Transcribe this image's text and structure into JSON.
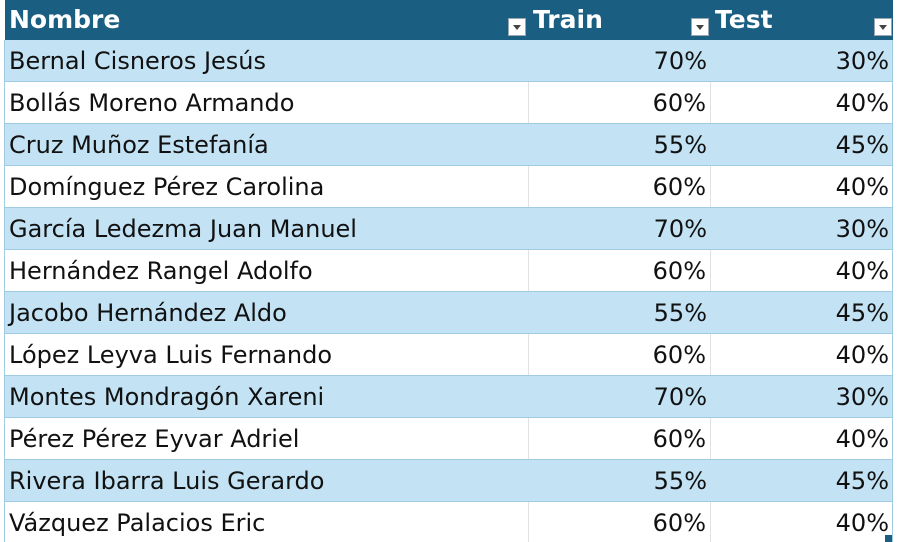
{
  "table": {
    "header": [
      {
        "label": "Nombre"
      },
      {
        "label": "Train"
      },
      {
        "label": "Test"
      }
    ],
    "rows": [
      {
        "nombre": "Bernal Cisneros Jesús",
        "train": "70%",
        "test": "30%"
      },
      {
        "nombre": "Bollás Moreno Armando",
        "train": "60%",
        "test": "40%"
      },
      {
        "nombre": "Cruz Muñoz Estefanía",
        "train": "55%",
        "test": "45%"
      },
      {
        "nombre": "Domínguez Pérez Carolina",
        "train": "60%",
        "test": "40%"
      },
      {
        "nombre": "García Ledezma Juan Manuel",
        "train": "70%",
        "test": "30%"
      },
      {
        "nombre": "Hernández Rangel Adolfo",
        "train": "60%",
        "test": "40%"
      },
      {
        "nombre": "Jacobo Hernández Aldo",
        "train": "55%",
        "test": "45%"
      },
      {
        "nombre": "López Leyva Luis Fernando",
        "train": "60%",
        "test": "40%"
      },
      {
        "nombre": "Montes Mondragón Xareni",
        "train": "70%",
        "test": "30%"
      },
      {
        "nombre": "Pérez Pérez Eyvar Adriel",
        "train": "60%",
        "test": "40%"
      },
      {
        "nombre": "Rivera Ibarra Luis Gerardo",
        "train": "55%",
        "test": "45%"
      },
      {
        "nombre": "Vázquez Palacios Eric",
        "train": "60%",
        "test": "40%"
      }
    ]
  },
  "colors": {
    "header_bg": "#1a5e82",
    "band_bg": "#c3e3f5",
    "plain_bg": "#ffffff"
  },
  "icons": {
    "filter": "chevron-down-icon"
  }
}
